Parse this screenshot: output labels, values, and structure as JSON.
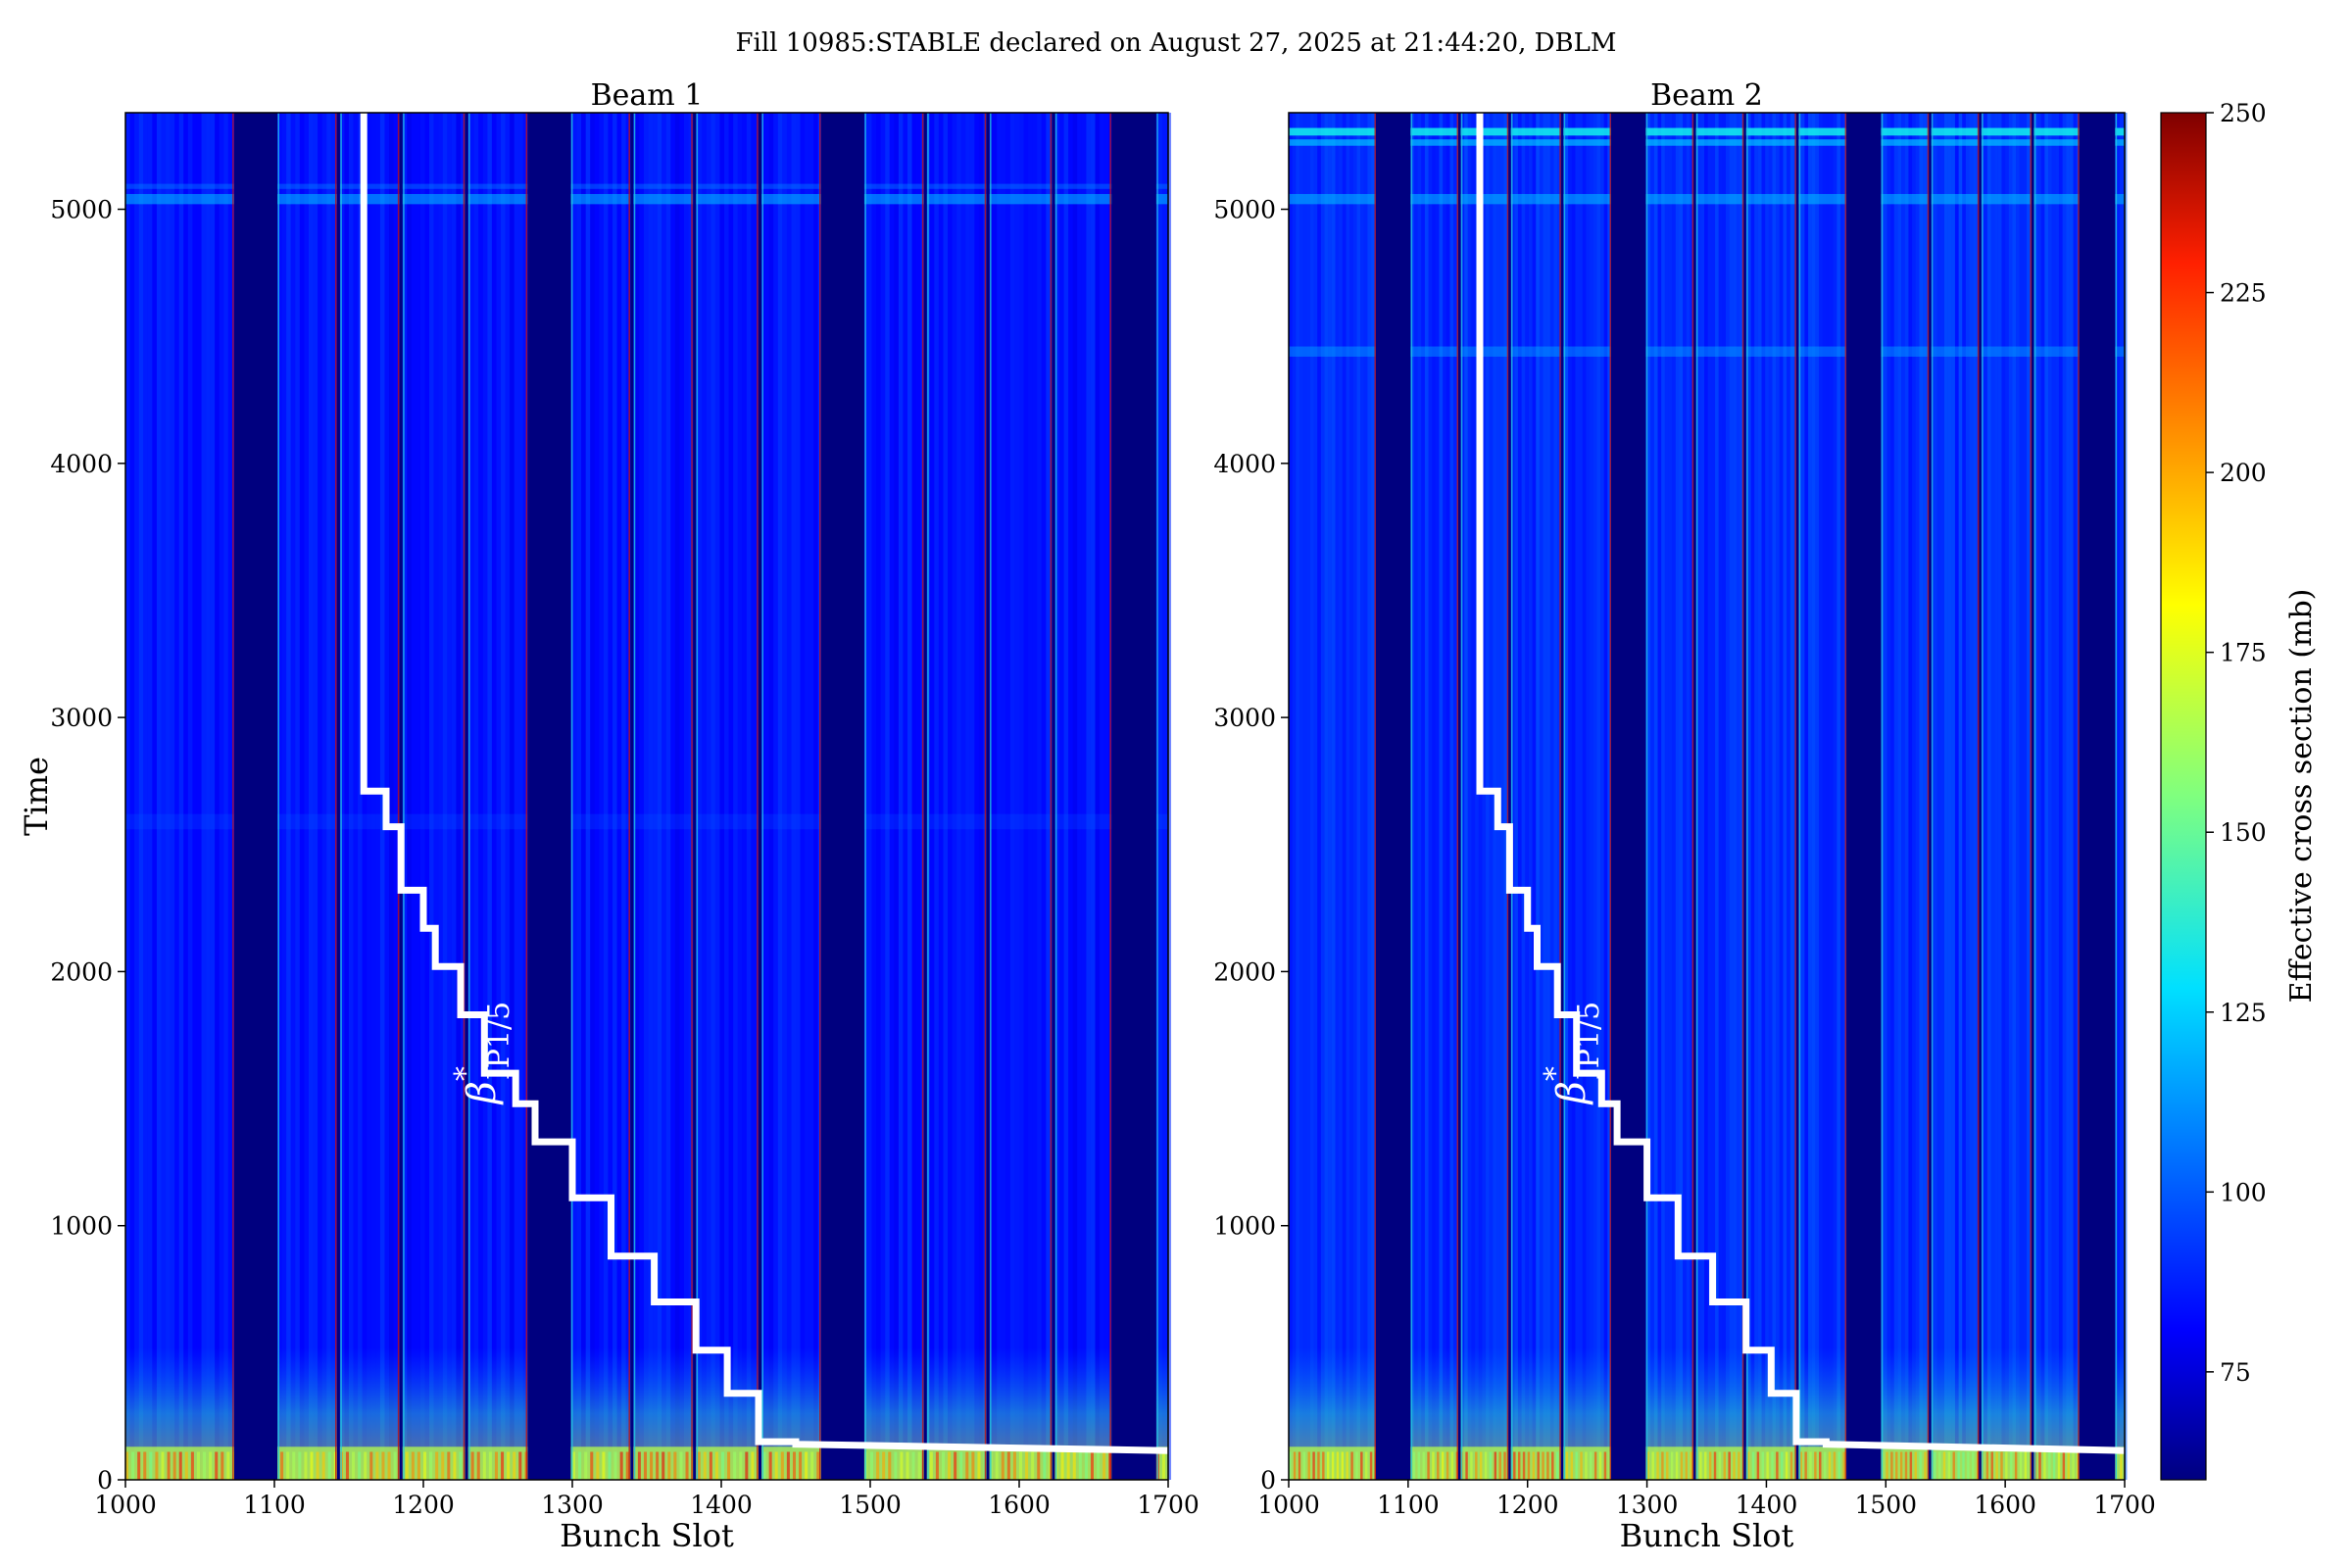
{
  "suptitle": "Fill 10985:STABLE declared on August 27, 2025 at 21:44:20, DBLM",
  "colorbar": {
    "label": "Effective cross section (mb)",
    "range": [
      60,
      250
    ],
    "ticks": [
      75,
      100,
      125,
      150,
      175,
      200,
      225,
      250
    ]
  },
  "chart_data": [
    {
      "type": "heatmap",
      "title": "Beam 1",
      "xlabel": "Bunch Slot",
      "ylabel": "Time",
      "xlim": [
        1000,
        1700
      ],
      "ylim": [
        0,
        5380
      ],
      "xticks": [
        1000,
        1100,
        1200,
        1300,
        1400,
        1500,
        1600,
        1700
      ],
      "yticks": [
        0,
        1000,
        2000,
        3000,
        4000,
        5000
      ],
      "empty_gaps": [
        [
          1073,
          1102
        ],
        [
          1142,
          1144
        ],
        [
          1184,
          1186
        ],
        [
          1228,
          1230
        ],
        [
          1270,
          1299
        ],
        [
          1339,
          1341
        ],
        [
          1381,
          1383
        ],
        [
          1425,
          1427
        ],
        [
          1467,
          1496
        ],
        [
          1536,
          1538
        ],
        [
          1578,
          1580
        ],
        [
          1622,
          1624
        ],
        [
          1662,
          1692
        ]
      ],
      "background_value": 85,
      "annotation": {
        "symbol": "β",
        "sup": "*",
        "sub": "IP1/5",
        "x": 1248,
        "y": 1480
      },
      "beta_star_line": [
        [
          1160,
          5380
        ],
        [
          1160,
          2710
        ],
        [
          1175,
          2710
        ],
        [
          1175,
          2570
        ],
        [
          1185,
          2570
        ],
        [
          1185,
          2320
        ],
        [
          1200,
          2320
        ],
        [
          1200,
          2170
        ],
        [
          1208,
          2170
        ],
        [
          1208,
          2020
        ],
        [
          1225,
          2020
        ],
        [
          1225,
          1830
        ],
        [
          1241,
          1830
        ],
        [
          1241,
          1600
        ],
        [
          1262,
          1600
        ],
        [
          1262,
          1480
        ],
        [
          1275,
          1480
        ],
        [
          1275,
          1330
        ],
        [
          1300,
          1330
        ],
        [
          1300,
          1110
        ],
        [
          1326,
          1110
        ],
        [
          1326,
          880
        ],
        [
          1355,
          880
        ],
        [
          1355,
          700
        ],
        [
          1383,
          700
        ],
        [
          1383,
          510
        ],
        [
          1404,
          510
        ],
        [
          1404,
          340
        ],
        [
          1425,
          340
        ],
        [
          1425,
          150
        ],
        [
          1450,
          150
        ],
        [
          1450,
          140
        ],
        [
          1700,
          115
        ]
      ]
    },
    {
      "type": "heatmap",
      "title": "Beam 2",
      "xlabel": "Bunch Slot",
      "ylabel": "",
      "xlim": [
        1000,
        1700
      ],
      "ylim": [
        0,
        5380
      ],
      "xticks": [
        1000,
        1100,
        1200,
        1300,
        1400,
        1500,
        1600,
        1700
      ],
      "yticks": [
        0,
        1000,
        2000,
        3000,
        4000,
        5000
      ],
      "empty_gaps": [
        [
          1073,
          1102
        ],
        [
          1142,
          1144
        ],
        [
          1184,
          1186
        ],
        [
          1228,
          1230
        ],
        [
          1270,
          1299
        ],
        [
          1339,
          1341
        ],
        [
          1381,
          1383
        ],
        [
          1425,
          1427
        ],
        [
          1467,
          1496
        ],
        [
          1536,
          1538
        ],
        [
          1578,
          1580
        ],
        [
          1622,
          1624
        ],
        [
          1662,
          1692
        ]
      ],
      "background_value": 90,
      "annotation": {
        "symbol": "β",
        "sup": "*",
        "sub": "IP1/5",
        "x": 1248,
        "y": 1480
      },
      "beta_star_line": [
        [
          1160,
          5380
        ],
        [
          1160,
          2710
        ],
        [
          1175,
          2710
        ],
        [
          1175,
          2570
        ],
        [
          1185,
          2570
        ],
        [
          1185,
          2320
        ],
        [
          1200,
          2320
        ],
        [
          1200,
          2170
        ],
        [
          1208,
          2170
        ],
        [
          1208,
          2020
        ],
        [
          1225,
          2020
        ],
        [
          1225,
          1830
        ],
        [
          1241,
          1830
        ],
        [
          1241,
          1600
        ],
        [
          1262,
          1600
        ],
        [
          1262,
          1480
        ],
        [
          1275,
          1480
        ],
        [
          1275,
          1330
        ],
        [
          1300,
          1330
        ],
        [
          1300,
          1110
        ],
        [
          1326,
          1110
        ],
        [
          1326,
          880
        ],
        [
          1355,
          880
        ],
        [
          1355,
          700
        ],
        [
          1383,
          700
        ],
        [
          1383,
          510
        ],
        [
          1404,
          510
        ],
        [
          1404,
          340
        ],
        [
          1425,
          340
        ],
        [
          1425,
          150
        ],
        [
          1450,
          150
        ],
        [
          1450,
          140
        ],
        [
          1700,
          115
        ]
      ]
    }
  ]
}
